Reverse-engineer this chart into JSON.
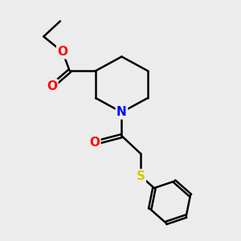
{
  "background_color": "#ececec",
  "bond_color": "#000000",
  "N_color": "#0000ff",
  "O_color": "#ff0000",
  "S_color": "#cccc00",
  "line_width": 1.8,
  "font_size_atom": 11,
  "xlim": [
    0,
    10
  ],
  "ylim": [
    0,
    10
  ]
}
